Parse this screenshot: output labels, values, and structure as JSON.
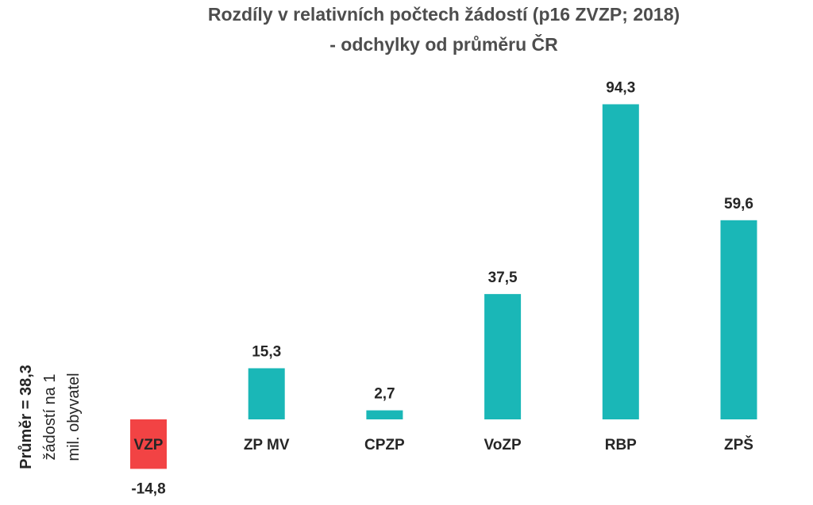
{
  "chart_data": {
    "type": "bar",
    "title_lines": [
      "Rozdíly v relativních počtech žádostí (p16 ZVZP; 2018)",
      "- odchylky od průměru ČR"
    ],
    "categories": [
      "VZP",
      "ZP MV",
      "CPZP",
      "VoZP",
      "RBP",
      "ZPŠ"
    ],
    "values": [
      -14.8,
      15.3,
      2.7,
      37.5,
      94.3,
      59.6
    ],
    "value_labels": [
      "-14,8",
      "15,3",
      "2,7",
      "37,5",
      "94,3",
      "59,6"
    ],
    "side_label": {
      "line1": "Průměr = 38,3",
      "line2": "žádostí na 1",
      "line3": "mil. obyvatel"
    },
    "colors": {
      "positive": "#1ab7b7",
      "negative": "#f24344",
      "text": "#262626",
      "title": "#4d4d4d"
    },
    "grid": false,
    "legend": "none"
  }
}
